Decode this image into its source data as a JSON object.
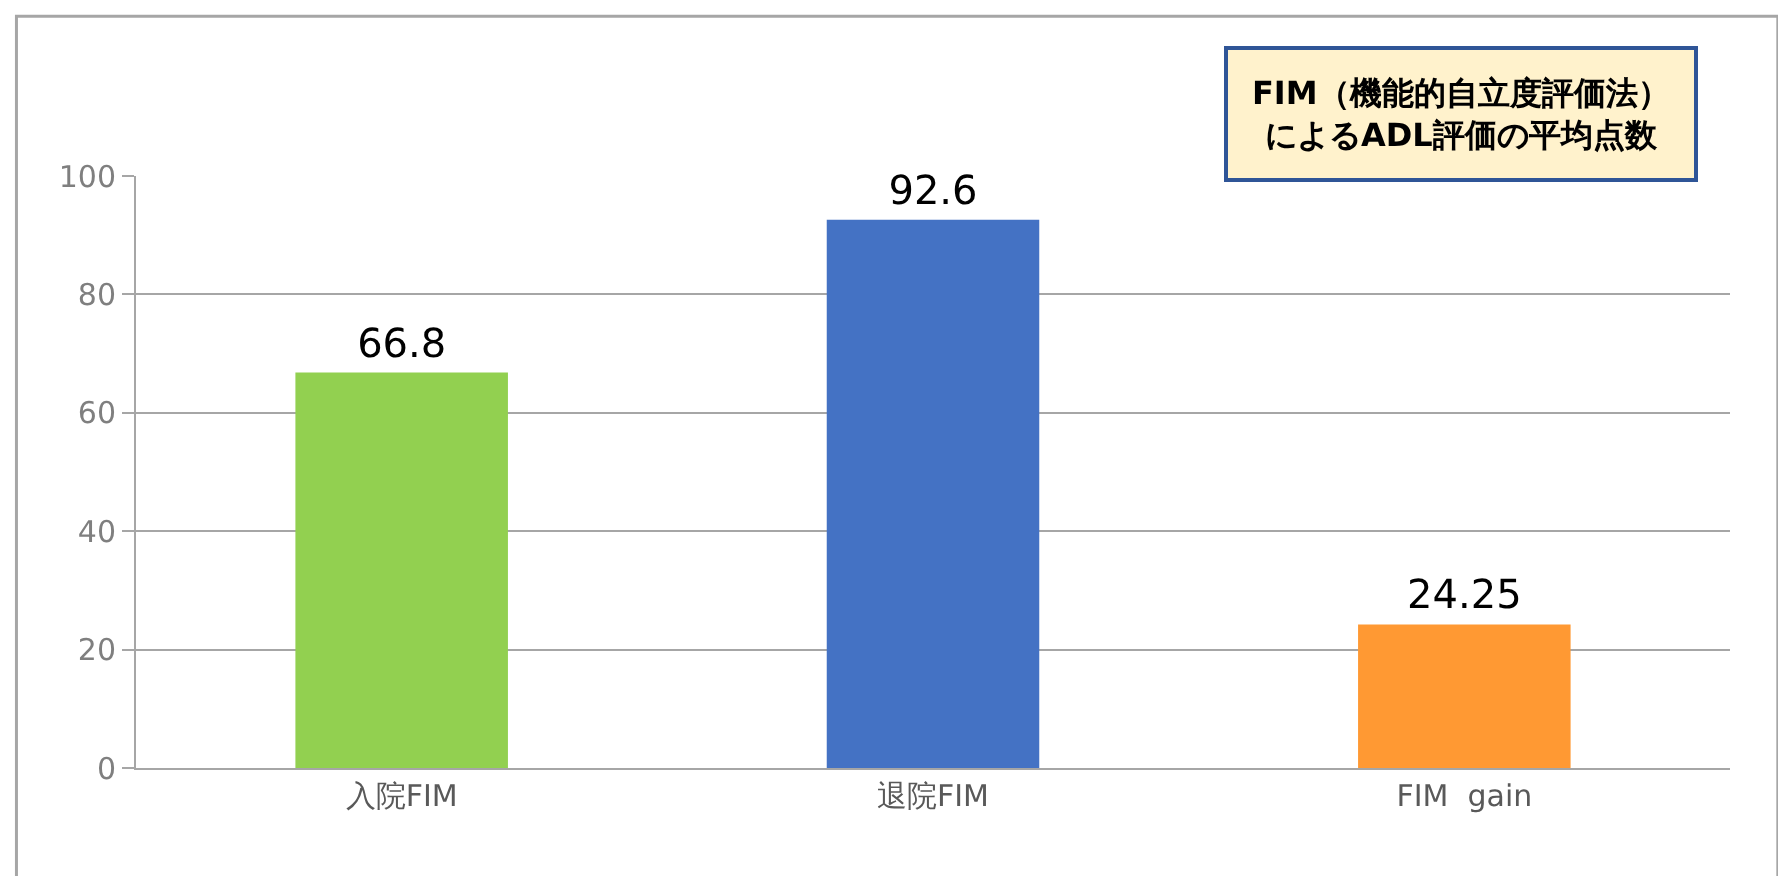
{
  "chart_data": {
    "type": "bar",
    "categories": [
      "入院FIM",
      "退院FIM",
      "FIM  gain"
    ],
    "values": [
      66.8,
      92.6,
      24.25
    ],
    "colors": [
      "#92d050",
      "#4472c4",
      "#ff9933"
    ],
    "ylim": [
      0,
      100
    ],
    "yticks": [
      0,
      20,
      40,
      60,
      80,
      100
    ],
    "grid": "y",
    "data_labels": true,
    "annotations": [
      "FIM（機能的自立度評価法）",
      "によるADL評価の平均点数"
    ]
  }
}
